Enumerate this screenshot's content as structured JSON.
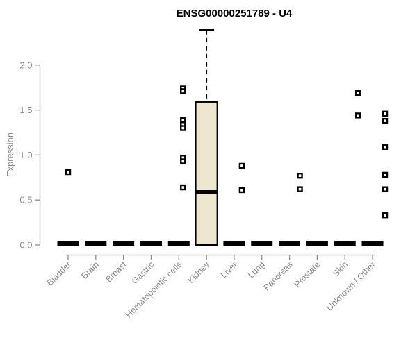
{
  "chart_data": {
    "type": "boxplot",
    "title": "ENSG00000251789 - U4",
    "xlabel": "",
    "ylabel": "Expression",
    "ylim": [
      0,
      2.4
    ],
    "yticks": [
      {
        "value": 0,
        "label": "0.0"
      },
      {
        "value": 0.5,
        "label": "0.5"
      },
      {
        "value": 1,
        "label": "1.0"
      },
      {
        "value": 1.5,
        "label": "1.5"
      },
      {
        "value": 2,
        "label": "2.0"
      }
    ],
    "categories": [
      "Bladder",
      "Brain",
      "Breast",
      "Gastric",
      "Hematopoietic cells",
      "Kidney",
      "Liver",
      "Lung",
      "Pancreas",
      "Prostate",
      "Skin",
      "Unknown / Other"
    ],
    "boxes": [
      {
        "category": "Bladder",
        "q1": 0,
        "median": 0,
        "q3": 0,
        "whisker_low": 0,
        "whisker_high": 0,
        "collapsed": true
      },
      {
        "category": "Brain",
        "q1": 0,
        "median": 0,
        "q3": 0,
        "whisker_low": 0,
        "whisker_high": 0,
        "collapsed": true
      },
      {
        "category": "Breast",
        "q1": 0,
        "median": 0,
        "q3": 0,
        "whisker_low": 0,
        "whisker_high": 0,
        "collapsed": true
      },
      {
        "category": "Gastric",
        "q1": 0,
        "median": 0,
        "q3": 0,
        "whisker_low": 0,
        "whisker_high": 0,
        "collapsed": true
      },
      {
        "category": "Hematopoietic cells",
        "q1": 0,
        "median": 0,
        "q3": 0,
        "whisker_low": 0,
        "whisker_high": 0,
        "collapsed": true
      },
      {
        "category": "Kidney",
        "q1": 0,
        "median": 0.59,
        "q3": 1.59,
        "whisker_low": 0,
        "whisker_high": 2.39,
        "collapsed": false
      },
      {
        "category": "Liver",
        "q1": 0,
        "median": 0,
        "q3": 0,
        "whisker_low": 0,
        "whisker_high": 0,
        "collapsed": true
      },
      {
        "category": "Lung",
        "q1": 0,
        "median": 0,
        "q3": 0,
        "whisker_low": 0,
        "whisker_high": 0,
        "collapsed": true
      },
      {
        "category": "Pancreas",
        "q1": 0,
        "median": 0,
        "q3": 0,
        "whisker_low": 0,
        "whisker_high": 0,
        "collapsed": true
      },
      {
        "category": "Prostate",
        "q1": 0,
        "median": 0,
        "q3": 0,
        "whisker_low": 0,
        "whisker_high": 0,
        "collapsed": true
      },
      {
        "category": "Skin",
        "q1": 0,
        "median": 0,
        "q3": 0,
        "whisker_low": 0,
        "whisker_high": 0,
        "collapsed": true
      },
      {
        "category": "Unknown / Other",
        "q1": 0,
        "median": 0,
        "q3": 0,
        "whisker_low": 0,
        "whisker_high": 0,
        "collapsed": true
      }
    ],
    "outliers": [
      {
        "category": "Bladder",
        "dx": 0,
        "values": [
          0.81
        ]
      },
      {
        "category": "Hematopoietic cells",
        "dx": 6,
        "values": [
          1.74,
          1.71,
          1.39,
          1.34,
          1.3,
          0.97,
          0.93,
          0.64
        ]
      },
      {
        "category": "Liver",
        "dx": 11,
        "values": [
          0.88,
          0.61
        ]
      },
      {
        "category": "Pancreas",
        "dx": 15,
        "values": [
          0.77,
          0.62
        ]
      },
      {
        "category": "Skin",
        "dx": 19,
        "values": [
          1.69,
          1.44
        ]
      },
      {
        "category": "Unknown / Other",
        "dx": 18,
        "values": [
          1.46,
          1.38,
          1.09,
          0.78,
          0.62,
          0.33
        ]
      }
    ],
    "marker_style": "open-square",
    "colors": {
      "background": "#ffffff",
      "box_fill": "#EDE7CF",
      "box_stroke": "#000000",
      "median": "#000000",
      "whisker": "#000000",
      "marker": "#000000",
      "collapsed_bar": "#000000",
      "axis_line": "#8c8c8c",
      "tick_label": "#8c8c8c",
      "axis_title": "#8c8c8c",
      "title": "#000000"
    },
    "layout": {
      "grid": false,
      "legend": "none",
      "x_label_rotation": -45,
      "whisker_line_style": "dashed"
    }
  }
}
